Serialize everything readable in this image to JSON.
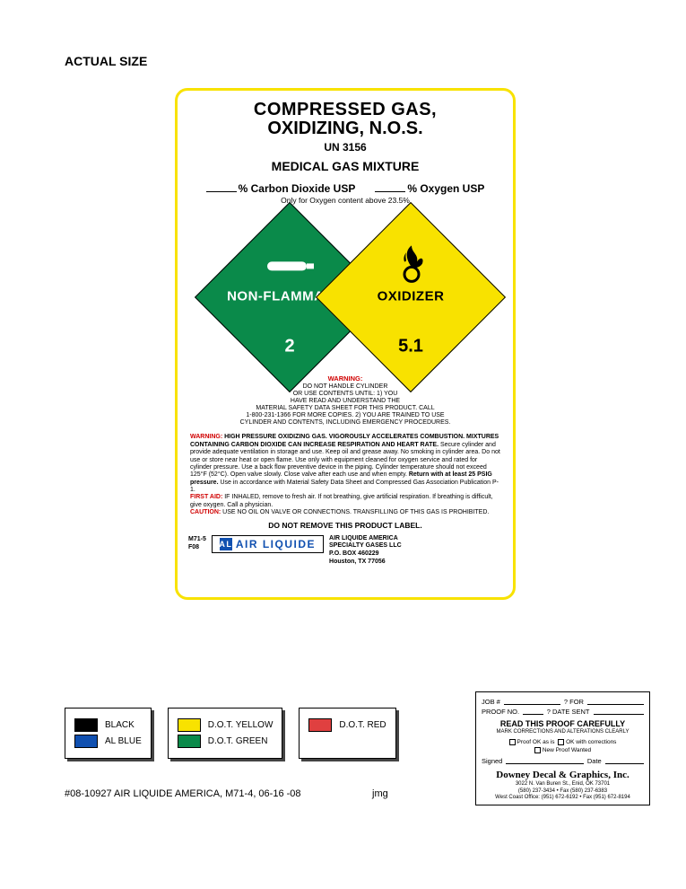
{
  "header": {
    "actual_size": "ACTUAL SIZE"
  },
  "label": {
    "title1": "COMPRESSED GAS,",
    "title2": "OXIDIZING, N.O.S.",
    "un": "UN 3156",
    "subtitle": "MEDICAL GAS MIXTURE",
    "pct_co2": "% Carbon Dioxide USP",
    "pct_o2": "% Oxygen USP",
    "pct_note": "Only for Oxygen content above 23.5%",
    "diamond_left": {
      "band": "NON-FLAMMABLE",
      "num": "2",
      "color": "#0a8a4a"
    },
    "diamond_right": {
      "band": "OXIDIZER",
      "num": "5.1",
      "color": "#f8e200"
    },
    "warn_head": "WARNING:",
    "warn_lines": "DO NOT HANDLE CYLINDER\nOR USE CONTENTS UNTIL: 1) YOU\nHAVE READ AND UNDERSTAND THE\nMATERIAL SAFETY DATA SHEET FOR THIS PRODUCT. CALL\n1-800-231-1366 FOR MORE COPIES. 2) YOU ARE TRAINED TO USE\nCYLINDER AND CONTENTS, INCLUDING EMERGENCY PROCEDURES.",
    "body": {
      "warning_label": "WARNING:",
      "warning_text": " HIGH PRESSURE OXIDIZING GAS. VIGOROUSLY ACCELERATES COMBUSTION. MIXTURES CONTAINING CARBON DIOXIDE CAN INCREASE RESPIRATION AND HEART RATE.",
      "detail": " Secure cylinder and provide adequate ventilation in storage and use. Keep oil and grease away. No smoking in cylinder area. Do not use or store near heat or open flame. Use only with equipment cleaned for oxygen service and rated for cylinder pressure. Use a back flow preventive device in the piping. Cylinder temperature should not exceed 125°F (52°C). Open valve slowly. Close valve after each use and when empty. ",
      "return_bold": "Return with at least 25 PSIG pressure.",
      "detail2": " Use in accordance with Material Safety Data Sheet and Compressed Gas Association Publication P-1.",
      "firstaid_label": "FIRST AID:",
      "firstaid_text": " IF INHALED, remove to fresh air. If not breathing, give artificial respiration. If breathing is difficult, give oxygen. Call a physician.",
      "caution_label": "CAUTION:",
      "caution_text": " USE NO OIL ON VALVE OR CONNECTIONS. TRANSFILLING OF THIS GAS IS PROHIBITED."
    },
    "donot": "DO NOT REMOVE THIS PRODUCT LABEL.",
    "code1": "M71-5",
    "code2": "F08",
    "logo": "AIR LIQUIDE",
    "addr1": "AIR LIQUIDE AMERICA",
    "addr2": "SPECIALTY GASES LLC",
    "addr3": "P.O. BOX 460229",
    "addr4": "Houston, TX  77056"
  },
  "swatches": {
    "box1": [
      {
        "color": "#000000",
        "label": "BLACK"
      },
      {
        "color": "#1050b0",
        "label": "AL BLUE"
      }
    ],
    "box2": [
      {
        "color": "#f8e200",
        "label": "D.O.T. YELLOW"
      },
      {
        "color": "#0a8a4a",
        "label": "D.O.T. GREEN"
      }
    ],
    "box3": [
      {
        "color": "#e04040",
        "label": "D.O.T. RED"
      }
    ]
  },
  "footer_line": "#08-10927 AIR LIQUIDE AMERICA, M71-4, 06-16 -08",
  "jmg": "jmg",
  "proof": {
    "job": "JOB #",
    "for": "? FOR",
    "proofno": "PROOF NO.",
    "date_sent": "? DATE SENT",
    "title": "READ THIS PROOF CAREFULLY",
    "sub": "MARK CORRECTIONS AND ALTERATIONS CLEARLY",
    "ok1": "Proof OK as is",
    "ok2": "OK with corrections",
    "ok3": "New Proof Wanted",
    "signed": "Signed",
    "date": "Date",
    "company": "Downey Decal & Graphics, Inc.",
    "a1": "3022 N. Van Buren St., Enid, OK 73701",
    "a2": "(580) 237-3434 • Fax (580) 237-6383",
    "a3": "West Coast Office: (951) 672-6192 • Fax (951) 672-8194"
  }
}
